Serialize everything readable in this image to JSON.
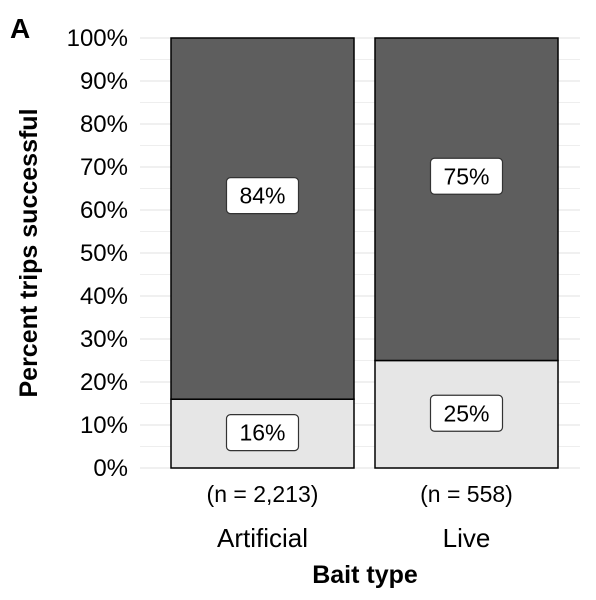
{
  "panel_label": "A",
  "colors": {
    "successful": "#5e5e5e",
    "unsuccessful": "#e6e6e6",
    "grid": "#e8e8e8",
    "outline": "#000000"
  },
  "chart_data": {
    "type": "bar",
    "stacked": true,
    "xlabel": "Bait type",
    "ylabel": "Percent trips successful",
    "ylim": [
      0,
      100
    ],
    "y_ticks": [
      "0%",
      "10%",
      "20%",
      "30%",
      "40%",
      "50%",
      "60%",
      "70%",
      "80%",
      "90%",
      "100%"
    ],
    "categories": [
      "Artificial",
      "Live"
    ],
    "sample_sizes": [
      "(n = 2,213)",
      "(n = 558)"
    ],
    "grid": true,
    "legend": "none",
    "series": [
      {
        "values": [
          16,
          25
        ],
        "labels": [
          "16%",
          "25%"
        ],
        "color": "#e6e6e6"
      },
      {
        "values": [
          84,
          75
        ],
        "labels": [
          "84%",
          "75%"
        ],
        "color": "#5e5e5e"
      }
    ]
  }
}
